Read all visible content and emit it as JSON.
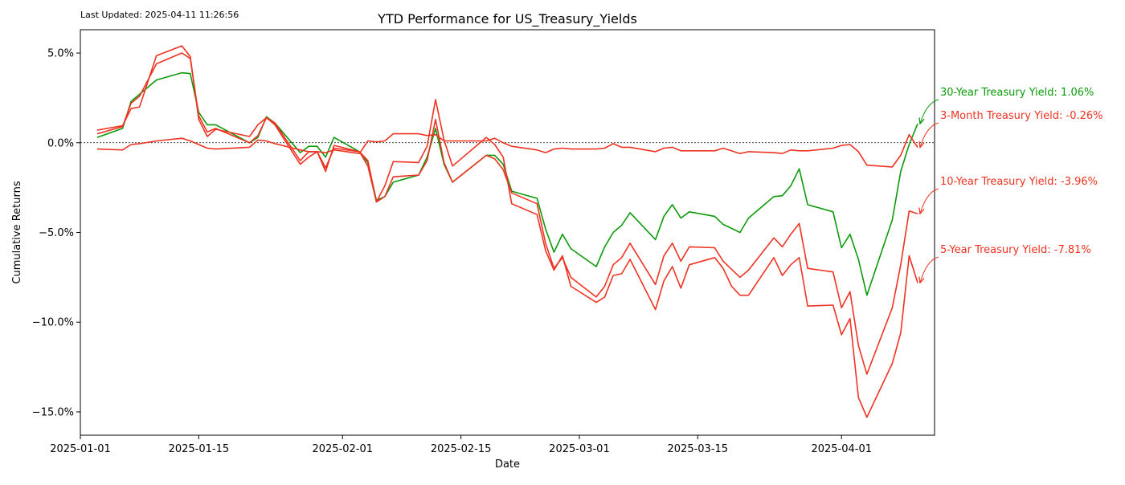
{
  "last_updated": "Last Updated: 2025-04-11 11:26:56",
  "chart_data": {
    "type": "line",
    "title": "YTD Performance for US_Treasury_Yields",
    "xlabel": "Date",
    "ylabel": "Cumulative Returns",
    "xlim": [
      "2025-01-01",
      "2025-04-12"
    ],
    "ylim": [
      -16.3,
      6.3
    ],
    "x_ticks": [
      "2025-01-01",
      "2025-01-15",
      "2025-02-01",
      "2025-02-15",
      "2025-03-01",
      "2025-03-15",
      "2025-04-01"
    ],
    "y_ticks": [
      5,
      0,
      -5,
      -10,
      -15
    ],
    "y_tick_labels": [
      "5.0%",
      "0.0%",
      "−5.0%",
      "−10.0%",
      "−15.0%"
    ],
    "zero_line": true,
    "grid": false,
    "series": [
      {
        "name": "30-Year Treasury Yield",
        "color": "#0a9a0a",
        "end_label": "30-Year Treasury Yield: 1.06%",
        "points": [
          [
            "2025-01-03",
            0.3
          ],
          [
            "2025-01-06",
            0.8
          ],
          [
            "2025-01-07",
            2.3
          ],
          [
            "2025-01-08",
            2.7
          ],
          [
            "2025-01-10",
            3.5
          ],
          [
            "2025-01-13",
            3.9
          ],
          [
            "2025-01-14",
            3.85
          ],
          [
            "2025-01-15",
            1.7
          ],
          [
            "2025-01-16",
            1.0
          ],
          [
            "2025-01-17",
            1.0
          ],
          [
            "2025-01-21",
            0.0
          ],
          [
            "2025-01-22",
            0.3
          ],
          [
            "2025-01-23",
            1.45
          ],
          [
            "2025-01-24",
            1.1
          ],
          [
            "2025-01-27",
            -0.55
          ],
          [
            "2025-01-28",
            -0.2
          ],
          [
            "2025-01-29",
            -0.2
          ],
          [
            "2025-01-30",
            -0.8
          ],
          [
            "2025-01-31",
            0.3
          ],
          [
            "2025-02-03",
            -0.5
          ],
          [
            "2025-02-04",
            -1.1
          ],
          [
            "2025-02-05",
            -3.2
          ],
          [
            "2025-02-06",
            -3.0
          ],
          [
            "2025-02-07",
            -2.2
          ],
          [
            "2025-02-10",
            -1.8
          ],
          [
            "2025-02-11",
            -0.8
          ],
          [
            "2025-02-12",
            0.8
          ],
          [
            "2025-02-13",
            -1.2
          ],
          [
            "2025-02-14",
            -2.2
          ],
          [
            "2025-02-18",
            -0.7
          ],
          [
            "2025-02-19",
            -0.7
          ],
          [
            "2025-02-20",
            -1.2
          ],
          [
            "2025-02-21",
            -2.7
          ],
          [
            "2025-02-24",
            -3.1
          ],
          [
            "2025-02-25",
            -4.8
          ],
          [
            "2025-02-26",
            -6.1
          ],
          [
            "2025-02-27",
            -5.1
          ],
          [
            "2025-02-28",
            -5.9
          ],
          [
            "2025-03-03",
            -6.9
          ],
          [
            "2025-03-04",
            -5.8
          ],
          [
            "2025-03-05",
            -5.0
          ],
          [
            "2025-03-06",
            -4.6
          ],
          [
            "2025-03-07",
            -3.9
          ],
          [
            "2025-03-10",
            -5.4
          ],
          [
            "2025-03-11",
            -4.1
          ],
          [
            "2025-03-12",
            -3.45
          ],
          [
            "2025-03-13",
            -4.2
          ],
          [
            "2025-03-14",
            -3.85
          ],
          [
            "2025-03-17",
            -4.1
          ],
          [
            "2025-03-18",
            -4.55
          ],
          [
            "2025-03-20",
            -5.0
          ],
          [
            "2025-03-21",
            -4.2
          ],
          [
            "2025-03-24",
            -3.0
          ],
          [
            "2025-03-25",
            -2.95
          ],
          [
            "2025-03-26",
            -2.4
          ],
          [
            "2025-03-27",
            -1.45
          ],
          [
            "2025-03-28",
            -3.45
          ],
          [
            "2025-03-31",
            -3.85
          ],
          [
            "2025-04-01",
            -5.85
          ],
          [
            "2025-04-02",
            -5.1
          ],
          [
            "2025-04-03",
            -6.5
          ],
          [
            "2025-04-04",
            -8.5
          ],
          [
            "2025-04-07",
            -4.3
          ],
          [
            "2025-04-08",
            -1.6
          ],
          [
            "2025-04-09",
            -0.1
          ],
          [
            "2025-04-10",
            1.06
          ]
        ]
      },
      {
        "name": "3-Month Treasury Yield",
        "color": "#ee3322",
        "end_label": "3-Month Treasury Yield: -0.26%",
        "points": [
          [
            "2025-01-03",
            -0.35
          ],
          [
            "2025-01-06",
            -0.4
          ],
          [
            "2025-01-07",
            -0.1
          ],
          [
            "2025-01-08",
            -0.05
          ],
          [
            "2025-01-10",
            0.1
          ],
          [
            "2025-01-13",
            0.25
          ],
          [
            "2025-01-14",
            0.1
          ],
          [
            "2025-01-15",
            -0.1
          ],
          [
            "2025-01-16",
            -0.3
          ],
          [
            "2025-01-17",
            -0.35
          ],
          [
            "2025-01-21",
            -0.25
          ],
          [
            "2025-01-22",
            0.15
          ],
          [
            "2025-01-23",
            0.1
          ],
          [
            "2025-01-24",
            -0.05
          ],
          [
            "2025-01-27",
            -0.4
          ],
          [
            "2025-01-28",
            -0.5
          ],
          [
            "2025-01-29",
            -0.5
          ],
          [
            "2025-01-30",
            -0.55
          ],
          [
            "2025-01-31",
            -0.4
          ],
          [
            "2025-02-03",
            -0.6
          ],
          [
            "2025-02-04",
            0.1
          ],
          [
            "2025-02-05",
            0.05
          ],
          [
            "2025-02-06",
            0.1
          ],
          [
            "2025-02-07",
            0.5
          ],
          [
            "2025-02-10",
            0.5
          ],
          [
            "2025-02-11",
            0.4
          ],
          [
            "2025-02-12",
            0.45
          ],
          [
            "2025-02-13",
            0.1
          ],
          [
            "2025-02-14",
            0.1
          ],
          [
            "2025-02-18",
            0.1
          ],
          [
            "2025-02-19",
            0.25
          ],
          [
            "2025-02-20",
            0.0
          ],
          [
            "2025-02-21",
            -0.2
          ],
          [
            "2025-02-24",
            -0.4
          ],
          [
            "2025-02-25",
            -0.55
          ],
          [
            "2025-02-26",
            -0.35
          ],
          [
            "2025-02-27",
            -0.3
          ],
          [
            "2025-02-28",
            -0.35
          ],
          [
            "2025-03-03",
            -0.35
          ],
          [
            "2025-03-04",
            -0.3
          ],
          [
            "2025-03-05",
            -0.05
          ],
          [
            "2025-03-06",
            -0.25
          ],
          [
            "2025-03-07",
            -0.25
          ],
          [
            "2025-03-10",
            -0.5
          ],
          [
            "2025-03-11",
            -0.3
          ],
          [
            "2025-03-12",
            -0.25
          ],
          [
            "2025-03-13",
            -0.45
          ],
          [
            "2025-03-14",
            -0.45
          ],
          [
            "2025-03-17",
            -0.45
          ],
          [
            "2025-03-18",
            -0.3
          ],
          [
            "2025-03-20",
            -0.6
          ],
          [
            "2025-03-21",
            -0.5
          ],
          [
            "2025-03-24",
            -0.55
          ],
          [
            "2025-03-25",
            -0.6
          ],
          [
            "2025-03-26",
            -0.4
          ],
          [
            "2025-03-27",
            -0.45
          ],
          [
            "2025-03-28",
            -0.45
          ],
          [
            "2025-03-31",
            -0.3
          ],
          [
            "2025-04-01",
            -0.15
          ],
          [
            "2025-04-02",
            -0.1
          ],
          [
            "2025-04-03",
            -0.5
          ],
          [
            "2025-04-04",
            -1.25
          ],
          [
            "2025-04-07",
            -1.35
          ],
          [
            "2025-04-08",
            -0.7
          ],
          [
            "2025-04-09",
            0.45
          ],
          [
            "2025-04-10",
            -0.26
          ]
        ]
      },
      {
        "name": "10-Year Treasury Yield",
        "color": "#ee3322",
        "end_label": "10-Year Treasury Yield: -3.96%",
        "points": [
          [
            "2025-01-03",
            0.5
          ],
          [
            "2025-01-06",
            0.9
          ],
          [
            "2025-01-07",
            2.2
          ],
          [
            "2025-01-08",
            2.6
          ],
          [
            "2025-01-10",
            4.4
          ],
          [
            "2025-01-13",
            5.0
          ],
          [
            "2025-01-14",
            4.7
          ],
          [
            "2025-01-15",
            1.5
          ],
          [
            "2025-01-16",
            0.6
          ],
          [
            "2025-01-17",
            0.8
          ],
          [
            "2025-01-21",
            0.0
          ],
          [
            "2025-01-22",
            0.4
          ],
          [
            "2025-01-23",
            1.4
          ],
          [
            "2025-01-24",
            1.1
          ],
          [
            "2025-01-27",
            -1.0
          ],
          [
            "2025-01-28",
            -0.5
          ],
          [
            "2025-01-29",
            -0.5
          ],
          [
            "2025-01-30",
            -1.4
          ],
          [
            "2025-01-31",
            -0.3
          ],
          [
            "2025-02-03",
            -0.5
          ],
          [
            "2025-02-04",
            -1.0
          ],
          [
            "2025-02-05",
            -3.3
          ],
          [
            "2025-02-06",
            -3.0
          ],
          [
            "2025-02-07",
            -1.9
          ],
          [
            "2025-02-10",
            -1.8
          ],
          [
            "2025-02-11",
            -1.0
          ],
          [
            "2025-02-12",
            1.3
          ],
          [
            "2025-02-13",
            -1.1
          ],
          [
            "2025-02-14",
            -2.2
          ],
          [
            "2025-02-18",
            -0.7
          ],
          [
            "2025-02-19",
            -0.9
          ],
          [
            "2025-02-20",
            -1.5
          ],
          [
            "2025-02-21",
            -2.8
          ],
          [
            "2025-02-24",
            -3.4
          ],
          [
            "2025-02-25",
            -5.6
          ],
          [
            "2025-02-26",
            -7.0
          ],
          [
            "2025-02-27",
            -6.4
          ],
          [
            "2025-02-28",
            -7.5
          ],
          [
            "2025-03-03",
            -8.6
          ],
          [
            "2025-03-04",
            -8.0
          ],
          [
            "2025-03-05",
            -6.8
          ],
          [
            "2025-03-06",
            -6.4
          ],
          [
            "2025-03-07",
            -5.6
          ],
          [
            "2025-03-10",
            -7.9
          ],
          [
            "2025-03-11",
            -6.3
          ],
          [
            "2025-03-12",
            -5.6
          ],
          [
            "2025-03-13",
            -6.6
          ],
          [
            "2025-03-14",
            -5.8
          ],
          [
            "2025-03-17",
            -5.85
          ],
          [
            "2025-03-18",
            -6.6
          ],
          [
            "2025-03-20",
            -7.5
          ],
          [
            "2025-03-21",
            -7.1
          ],
          [
            "2025-03-24",
            -5.3
          ],
          [
            "2025-03-25",
            -5.8
          ],
          [
            "2025-03-26",
            -5.1
          ],
          [
            "2025-03-27",
            -4.5
          ],
          [
            "2025-03-28",
            -7.0
          ],
          [
            "2025-03-31",
            -7.2
          ],
          [
            "2025-04-01",
            -9.2
          ],
          [
            "2025-04-02",
            -8.3
          ],
          [
            "2025-04-03",
            -11.3
          ],
          [
            "2025-04-04",
            -12.9
          ],
          [
            "2025-04-07",
            -9.2
          ],
          [
            "2025-04-08",
            -6.8
          ],
          [
            "2025-04-09",
            -3.8
          ],
          [
            "2025-04-10",
            -3.96
          ]
        ]
      },
      {
        "name": "5-Year Treasury Yield",
        "color": "#ee3322",
        "end_label": "5-Year Treasury Yield: -7.81%",
        "points": [
          [
            "2025-01-03",
            0.7
          ],
          [
            "2025-01-06",
            0.95
          ],
          [
            "2025-01-07",
            1.9
          ],
          [
            "2025-01-08",
            2.0
          ],
          [
            "2025-01-10",
            4.85
          ],
          [
            "2025-01-13",
            5.4
          ],
          [
            "2025-01-14",
            4.8
          ],
          [
            "2025-01-15",
            1.3
          ],
          [
            "2025-01-16",
            0.35
          ],
          [
            "2025-01-17",
            0.75
          ],
          [
            "2025-01-21",
            0.35
          ],
          [
            "2025-01-22",
            1.0
          ],
          [
            "2025-01-23",
            1.4
          ],
          [
            "2025-01-24",
            1.0
          ],
          [
            "2025-01-27",
            -1.2
          ],
          [
            "2025-01-28",
            -0.8
          ],
          [
            "2025-01-29",
            -0.5
          ],
          [
            "2025-01-30",
            -1.6
          ],
          [
            "2025-01-31",
            -0.15
          ],
          [
            "2025-02-03",
            -0.5
          ],
          [
            "2025-02-04",
            -1.3
          ],
          [
            "2025-02-05",
            -3.3
          ],
          [
            "2025-02-06",
            -2.4
          ],
          [
            "2025-02-07",
            -1.05
          ],
          [
            "2025-02-10",
            -1.1
          ],
          [
            "2025-02-11",
            -0.2
          ],
          [
            "2025-02-12",
            2.4
          ],
          [
            "2025-02-13",
            0.15
          ],
          [
            "2025-02-14",
            -1.3
          ],
          [
            "2025-02-18",
            0.3
          ],
          [
            "2025-02-19",
            -0.1
          ],
          [
            "2025-02-20",
            -0.8
          ],
          [
            "2025-02-21",
            -3.4
          ],
          [
            "2025-02-24",
            -4.0
          ],
          [
            "2025-02-25",
            -6.0
          ],
          [
            "2025-02-26",
            -7.1
          ],
          [
            "2025-02-27",
            -6.3
          ],
          [
            "2025-02-28",
            -8.0
          ],
          [
            "2025-03-03",
            -8.9
          ],
          [
            "2025-03-04",
            -8.6
          ],
          [
            "2025-03-05",
            -7.4
          ],
          [
            "2025-03-06",
            -7.3
          ],
          [
            "2025-03-07",
            -6.5
          ],
          [
            "2025-03-10",
            -9.3
          ],
          [
            "2025-03-11",
            -7.7
          ],
          [
            "2025-03-12",
            -6.9
          ],
          [
            "2025-03-13",
            -8.1
          ],
          [
            "2025-03-14",
            -6.8
          ],
          [
            "2025-03-17",
            -6.4
          ],
          [
            "2025-03-18",
            -7.0
          ],
          [
            "2025-03-19",
            -8.0
          ],
          [
            "2025-03-20",
            -8.5
          ],
          [
            "2025-03-21",
            -8.5
          ],
          [
            "2025-03-24",
            -6.4
          ],
          [
            "2025-03-25",
            -7.4
          ],
          [
            "2025-03-26",
            -6.8
          ],
          [
            "2025-03-27",
            -6.4
          ],
          [
            "2025-03-28",
            -9.1
          ],
          [
            "2025-03-31",
            -9.05
          ],
          [
            "2025-04-01",
            -10.7
          ],
          [
            "2025-04-02",
            -9.8
          ],
          [
            "2025-04-03",
            -14.2
          ],
          [
            "2025-04-04",
            -15.3
          ],
          [
            "2025-04-07",
            -12.3
          ],
          [
            "2025-04-08",
            -10.6
          ],
          [
            "2025-04-09",
            -6.3
          ],
          [
            "2025-04-10",
            -7.81
          ]
        ]
      }
    ]
  }
}
